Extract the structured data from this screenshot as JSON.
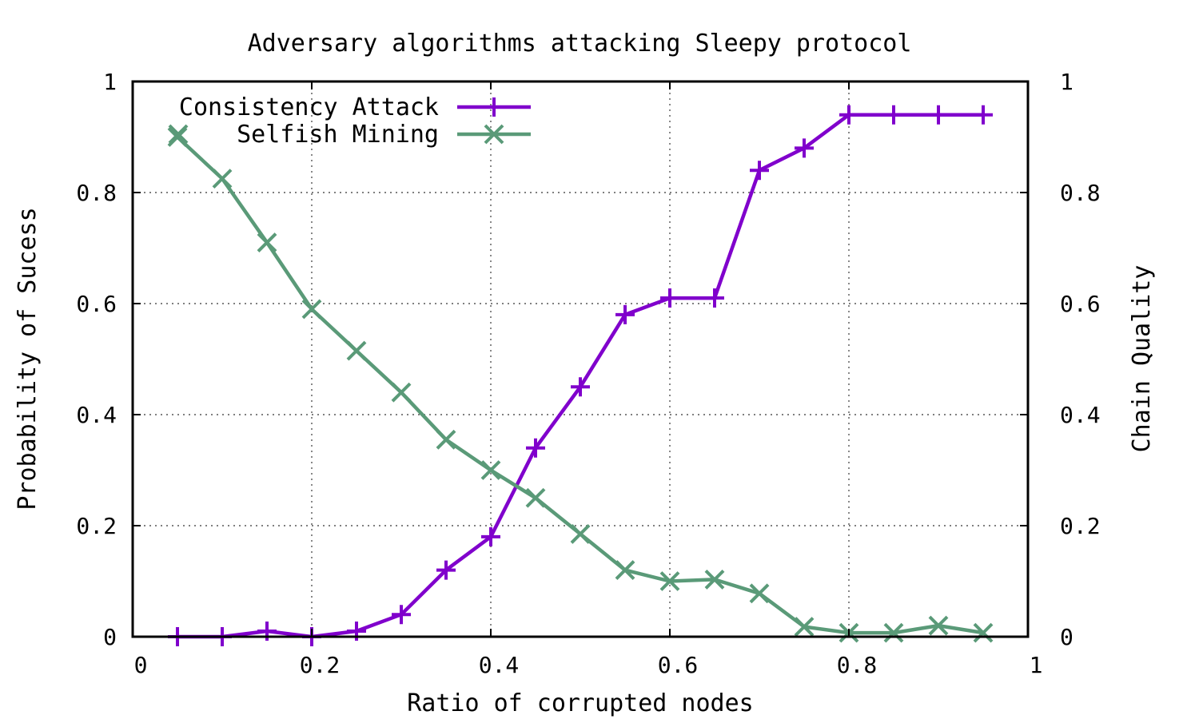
{
  "chart_data": {
    "type": "line",
    "title": "Adversary algorithms attacking Sleepy protocol",
    "xlabel": "Ratio of corrupted nodes",
    "ylabel": "Probability of Sucess",
    "y2label": "Chain Quality",
    "xlim": [
      0,
      1
    ],
    "ylim": [
      0,
      1
    ],
    "y2lim": [
      0,
      1
    ],
    "xticks": [
      "0",
      "0.2",
      "0.4",
      "0.6",
      "0.8",
      "1"
    ],
    "yticks": [
      "0",
      "0.2",
      "0.4",
      "0.6",
      "0.8",
      "1"
    ],
    "y2ticks": [
      "0",
      "0.2",
      "0.4",
      "0.6",
      "0.8",
      "1"
    ],
    "grid": true,
    "legend_position": "top-left",
    "x": [
      0.05,
      0.1,
      0.15,
      0.2,
      0.25,
      0.3,
      0.35,
      0.4,
      0.45,
      0.5,
      0.55,
      0.6,
      0.65,
      0.7,
      0.75,
      0.8,
      0.85,
      0.9,
      0.95
    ],
    "series": [
      {
        "name": "Consistency Attack",
        "axis": "left",
        "marker": "plus",
        "color": "#8000cc",
        "values": [
          0,
          0,
          0.01,
          0,
          0.01,
          0.04,
          0.12,
          0.18,
          0.34,
          0.45,
          0.58,
          0.61,
          0.61,
          0.84,
          0.88,
          0.94,
          0.94,
          0.94,
          0.94
        ]
      },
      {
        "name": "Selfish Mining",
        "axis": "right",
        "marker": "cross",
        "color": "#5a9a78",
        "values": [
          0.9,
          0.825,
          0.71,
          0.59,
          0.515,
          0.44,
          0.355,
          0.3,
          0.25,
          0.185,
          0.12,
          0.1,
          0.103,
          0.078,
          0.018,
          0.007,
          0.007,
          0.02,
          0.007
        ]
      }
    ]
  }
}
